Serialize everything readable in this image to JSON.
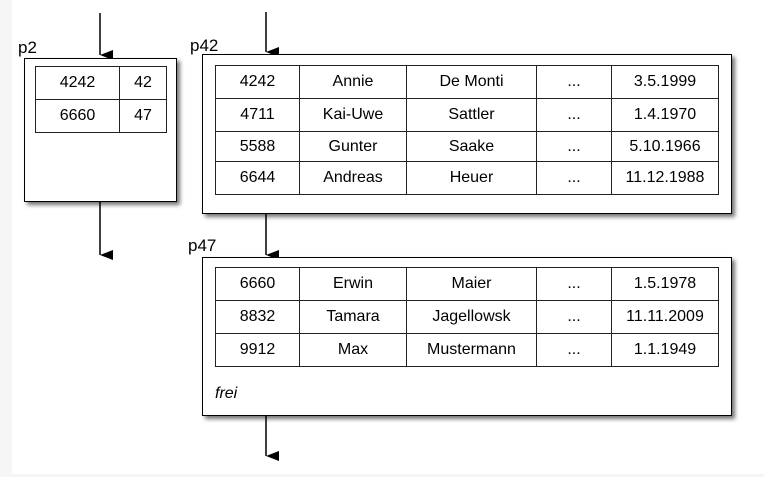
{
  "directory_page": {
    "label": "p2",
    "rows": [
      [
        "4242",
        "42"
      ],
      [
        "6660",
        "47"
      ]
    ]
  },
  "data_pages": [
    {
      "label": "p42",
      "rows": [
        [
          "4242",
          "Annie",
          "De Monti",
          "...",
          "3.5.1999"
        ],
        [
          "4711",
          "Kai-Uwe",
          "Sattler",
          "...",
          "1.4.1970"
        ],
        [
          "5588",
          "Gunter",
          "Saake",
          "...",
          "5.10.1966"
        ],
        [
          "6644",
          "Andreas",
          "Heuer",
          "...",
          "11.12.1988"
        ]
      ]
    },
    {
      "label": "p47",
      "rows": [
        [
          "6660",
          "Erwin",
          "Maier",
          "...",
          "1.5.1978"
        ],
        [
          "8832",
          "Tamara",
          "Jagellowsk",
          "...",
          "11.11.2009"
        ],
        [
          "9912",
          "Max",
          "Mustermann",
          "...",
          "1.1.1949"
        ]
      ],
      "free_label": "frei"
    }
  ]
}
